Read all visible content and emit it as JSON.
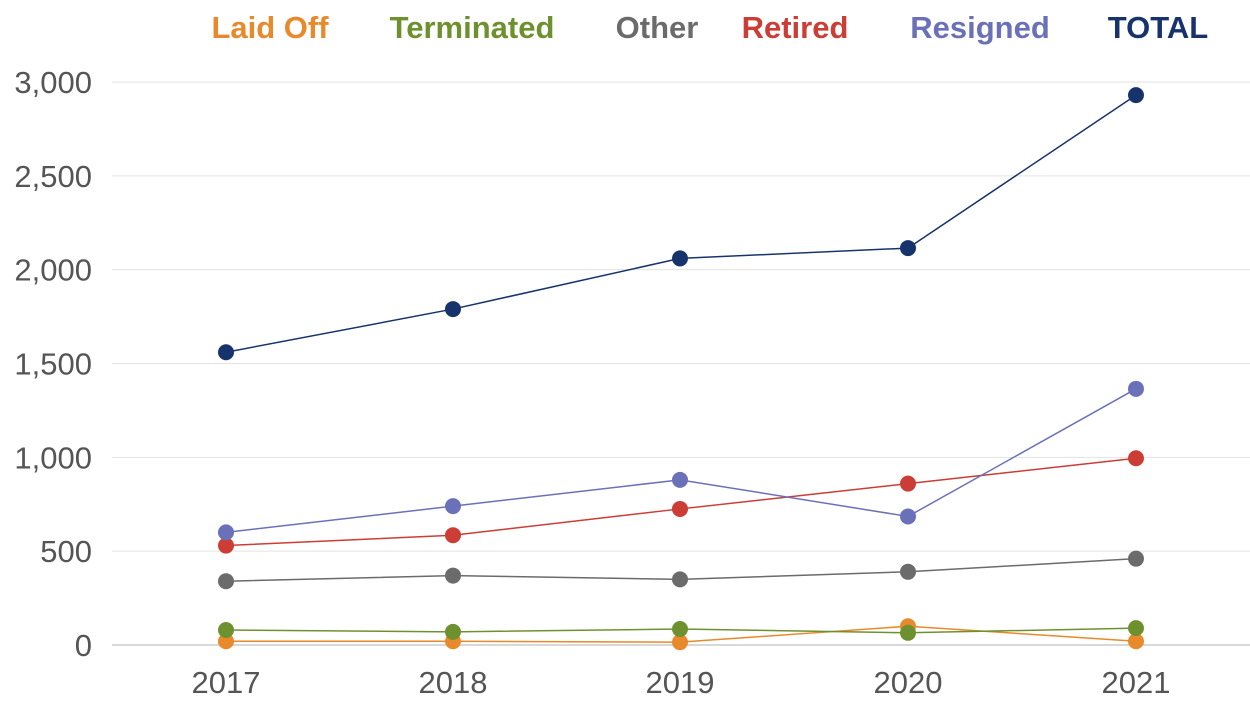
{
  "chart_data": {
    "type": "line",
    "title": "",
    "xlabel": "",
    "ylabel": "",
    "x": [
      "2017",
      "2018",
      "2019",
      "2020",
      "2021"
    ],
    "ylim": [
      0,
      3000
    ],
    "yticks": [
      0,
      500,
      1000,
      1500,
      2000,
      2500,
      3000
    ],
    "ytick_labels": [
      "0",
      "500",
      "1,000",
      "1,500",
      "2,000",
      "2,500",
      "3,000"
    ],
    "grid": true,
    "legend_position": "top",
    "series": [
      {
        "name": "Laid Off",
        "color": "#e8892b",
        "values": [
          20,
          20,
          15,
          100,
          20
        ]
      },
      {
        "name": "Terminated",
        "color": "#6e9130",
        "values": [
          80,
          70,
          85,
          65,
          90
        ]
      },
      {
        "name": "Other",
        "color": "#6b6b6b",
        "values": [
          340,
          370,
          350,
          390,
          460
        ]
      },
      {
        "name": "Retired",
        "color": "#cc3d35",
        "values": [
          530,
          585,
          725,
          860,
          995
        ]
      },
      {
        "name": "Resigned",
        "color": "#6a71b8",
        "values": [
          600,
          740,
          880,
          685,
          1365
        ]
      },
      {
        "name": "TOTAL",
        "color": "#17336b",
        "values": [
          1560,
          1790,
          2060,
          2115,
          2930
        ]
      }
    ]
  }
}
